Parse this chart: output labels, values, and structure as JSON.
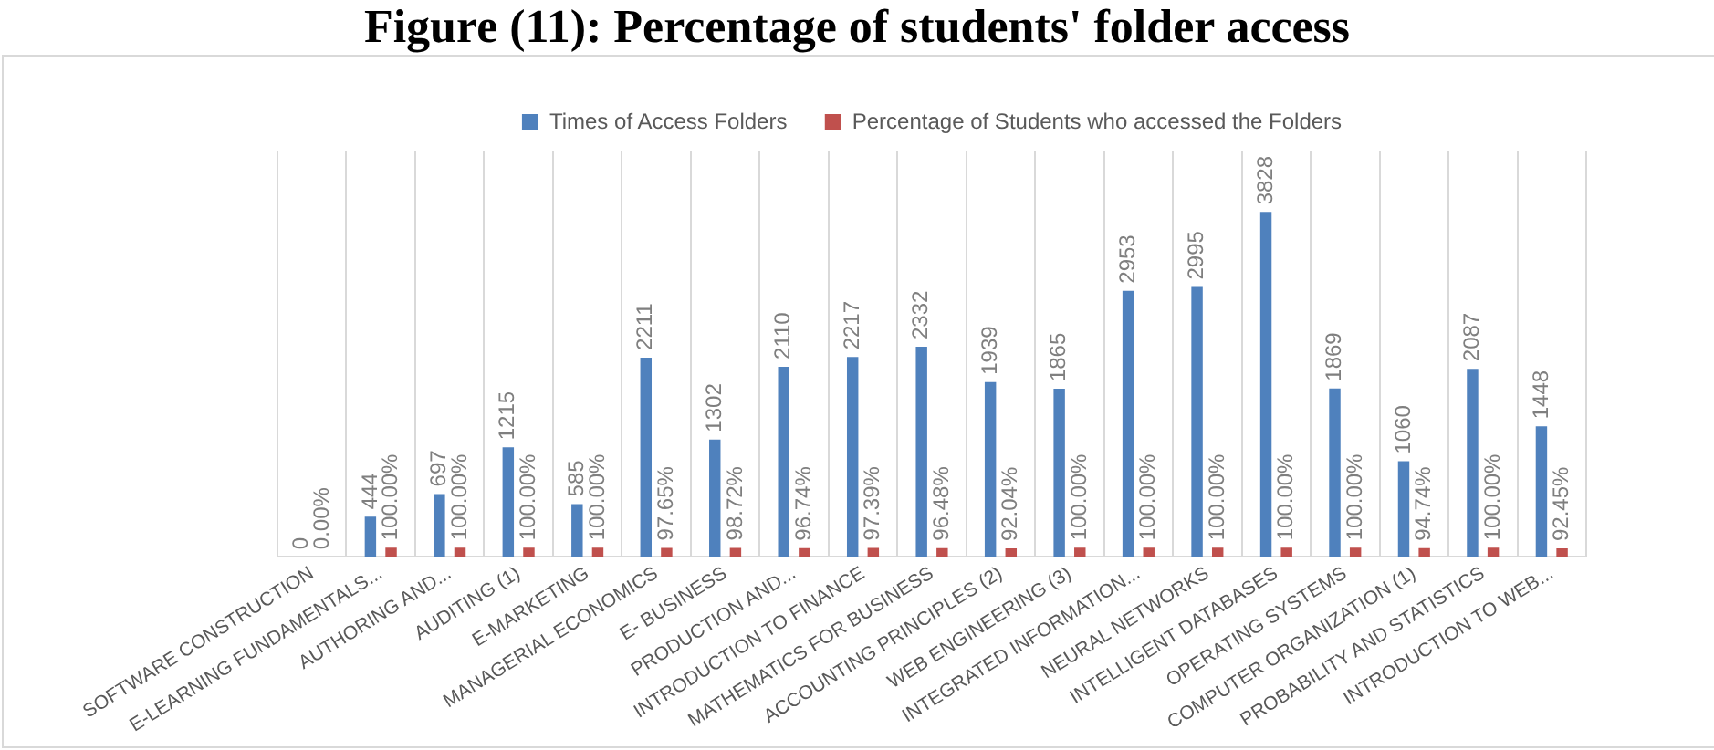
{
  "chart_data": {
    "type": "bar",
    "title": "Figure (11): Percentage of students' folder access",
    "categories": [
      "SOFTWARE CONSTRUCTION",
      "E-LEARNING FUNDAMENTALS...",
      "AUTHORING AND...",
      "AUDITING (1)",
      "E-MARKETING",
      "MANAGERIAL ECONOMICS",
      "E- BUSINESS",
      "PRODUCTION AND...",
      "INTRODUCTION TO FINANCE",
      "MATHEMATICS FOR BUSINESS",
      "ACCOUNTING PRINCIPLES (2)",
      "WEB ENGINEERING (3)",
      "INTEGRATED INFORMATION...",
      "NEURAL NETWORKS",
      "INTELLIGENT DATABASES",
      "OPERATING SYSTEMS",
      "COMPUTER ORGANIZATION (1)",
      "PROBABILITY AND STATISTICS",
      "INTRODUCTION TO WEB..."
    ],
    "series": [
      {
        "name": "Times of Access Folders",
        "color": "#4f81bd",
        "values": [
          0,
          444,
          697,
          1215,
          585,
          2211,
          1302,
          2110,
          2217,
          2332,
          1939,
          1865,
          2953,
          2995,
          3828,
          1869,
          1060,
          2087,
          1448
        ]
      },
      {
        "name": "Percentage of Students who accessed the Folders",
        "color": "#c0504d",
        "values": [
          0,
          100,
          100,
          100,
          100,
          97.65,
          98.72,
          96.74,
          97.39,
          96.48,
          92.04,
          100,
          100,
          100,
          100,
          100,
          94.74,
          100,
          92.45
        ],
        "value_labels": [
          "0.00%",
          "100.00%",
          "100.00%",
          "100.00%",
          "100.00%",
          "97.65%",
          "98.72%",
          "96.74%",
          "97.39%",
          "96.48%",
          "92.04%",
          "100.00%",
          "100.00%",
          "100.00%",
          "100.00%",
          "100.00%",
          "94.74%",
          "100.00%",
          "92.45%"
        ]
      }
    ],
    "data_labels": true,
    "grid": "x",
    "legend": "top"
  }
}
